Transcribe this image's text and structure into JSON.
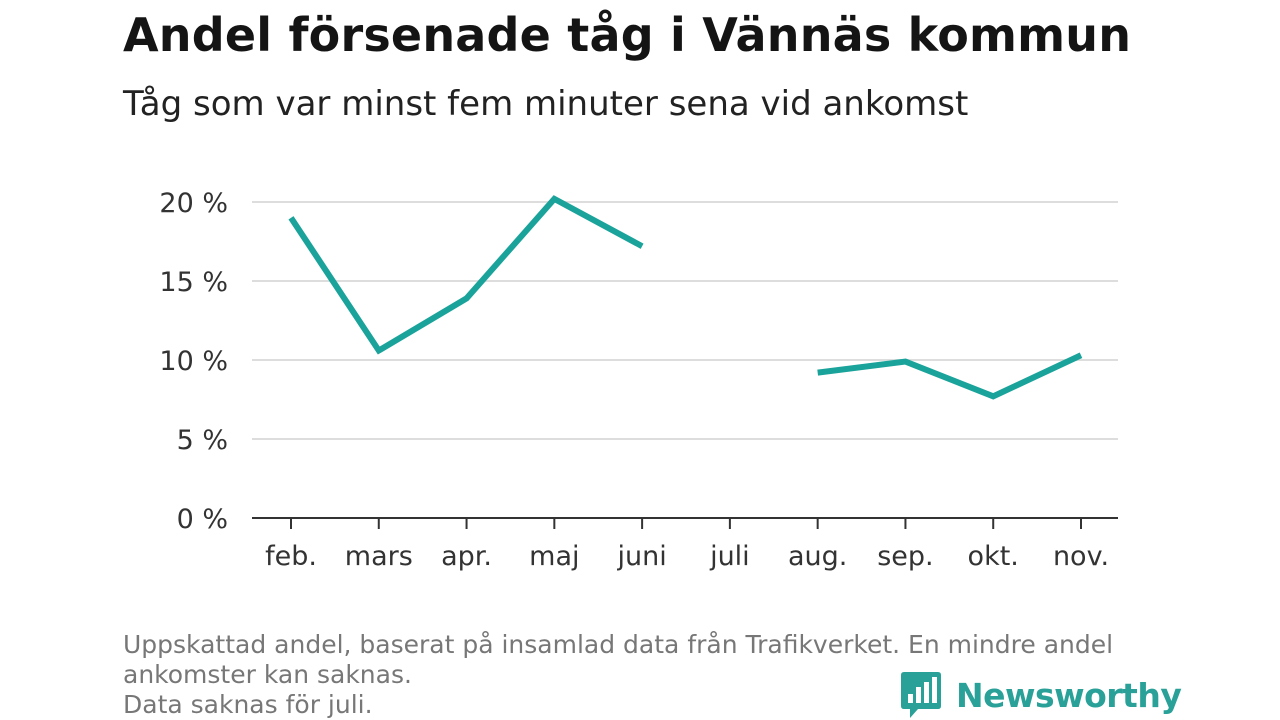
{
  "title": "Andel försenade tåg i Vännäs kommun",
  "subtitle": "Tåg som var minst fem minuter sena vid ankomst",
  "footnote": {
    "line1": "Uppskattad andel, baserat på insamlad data från Trafikverket. En mindre andel",
    "line2": "ankomster kan saknas.",
    "line3": "Data saknas för juli."
  },
  "brand": {
    "name": "Newsworthy"
  },
  "colors": {
    "line": "#1aa39a",
    "grid": "#dddddd",
    "axis": "#333333",
    "brand": "#2aa198"
  },
  "chart_data": {
    "type": "line",
    "categories": [
      "feb.",
      "mars",
      "apr.",
      "maj",
      "juni",
      "juli",
      "aug.",
      "sep.",
      "okt.",
      "nov."
    ],
    "series": [
      {
        "values": [
          19.0,
          10.6,
          13.9,
          20.2,
          17.2,
          null,
          9.2,
          9.9,
          7.7,
          10.3
        ]
      }
    ],
    "y_ticks": [
      0,
      5,
      10,
      15,
      20
    ],
    "y_tick_labels": [
      "0 %",
      "5 %",
      "10 %",
      "15 %",
      "20 %"
    ],
    "ylim": [
      0,
      20
    ],
    "grid": true
  }
}
